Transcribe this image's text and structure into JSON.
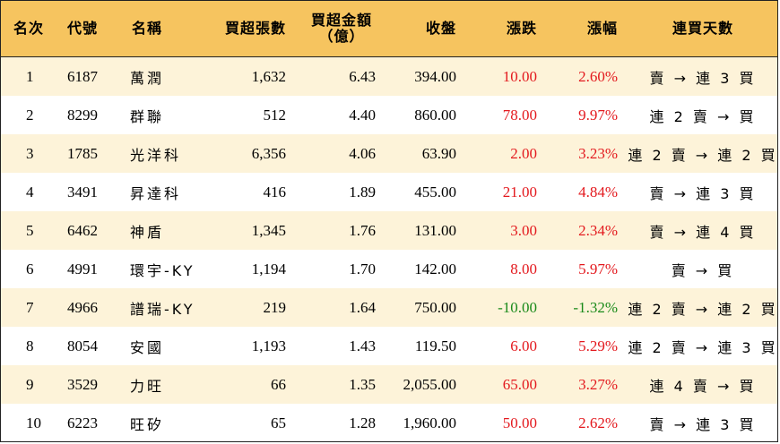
{
  "headers": {
    "rank": "名次",
    "code": "代號",
    "name": "名稱",
    "lots": "買超張數",
    "amount_line1": "買超金額",
    "amount_line2": "（億）",
    "close": "收盤",
    "change": "漲跌",
    "pct": "漲幅",
    "streak": "連買天數"
  },
  "colors": {
    "header_bg": "#f6c45f",
    "odd_row_bg": "#fdf3d9",
    "up": "#e3191e",
    "down": "#1a8a1a"
  },
  "rows": [
    {
      "rank": "1",
      "code": "6187",
      "name": "萬潤",
      "lots": "1,632",
      "amount": "6.43",
      "close": "394.00",
      "change": "10.00",
      "pct": "2.60%",
      "dir": "up",
      "streak": "賣 → 連 3 買"
    },
    {
      "rank": "2",
      "code": "8299",
      "name": "群聯",
      "lots": "512",
      "amount": "4.40",
      "close": "860.00",
      "change": "78.00",
      "pct": "9.97%",
      "dir": "up",
      "streak": "連 2 賣 → 買"
    },
    {
      "rank": "3",
      "code": "1785",
      "name": "光洋科",
      "lots": "6,356",
      "amount": "4.06",
      "close": "63.90",
      "change": "2.00",
      "pct": "3.23%",
      "dir": "up",
      "streak": "連 2 賣 → 連 2 買"
    },
    {
      "rank": "4",
      "code": "3491",
      "name": "昇達科",
      "lots": "416",
      "amount": "1.89",
      "close": "455.00",
      "change": "21.00",
      "pct": "4.84%",
      "dir": "up",
      "streak": "賣 → 連 3 買"
    },
    {
      "rank": "5",
      "code": "6462",
      "name": "神盾",
      "lots": "1,345",
      "amount": "1.76",
      "close": "131.00",
      "change": "3.00",
      "pct": "2.34%",
      "dir": "up",
      "streak": "賣 → 連 4 買"
    },
    {
      "rank": "6",
      "code": "4991",
      "name": "環宇-KY",
      "lots": "1,194",
      "amount": "1.70",
      "close": "142.00",
      "change": "8.00",
      "pct": "5.97%",
      "dir": "up",
      "streak": "賣 → 買"
    },
    {
      "rank": "7",
      "code": "4966",
      "name": "譜瑞-KY",
      "lots": "219",
      "amount": "1.64",
      "close": "750.00",
      "change": "-10.00",
      "pct": "-1.32%",
      "dir": "down",
      "streak": "連 2 賣 → 連 2 買"
    },
    {
      "rank": "8",
      "code": "8054",
      "name": "安國",
      "lots": "1,193",
      "amount": "1.43",
      "close": "119.50",
      "change": "6.00",
      "pct": "5.29%",
      "dir": "up",
      "streak": "連 2 賣 → 連 3 買"
    },
    {
      "rank": "9",
      "code": "3529",
      "name": "力旺",
      "lots": "66",
      "amount": "1.35",
      "close": "2,055.00",
      "change": "65.00",
      "pct": "3.27%",
      "dir": "up",
      "streak": "連 4 賣 → 買"
    },
    {
      "rank": "10",
      "code": "6223",
      "name": "旺矽",
      "lots": "65",
      "amount": "1.28",
      "close": "1,960.00",
      "change": "50.00",
      "pct": "2.62%",
      "dir": "up",
      "streak": "賣 → 連 3 買"
    }
  ]
}
